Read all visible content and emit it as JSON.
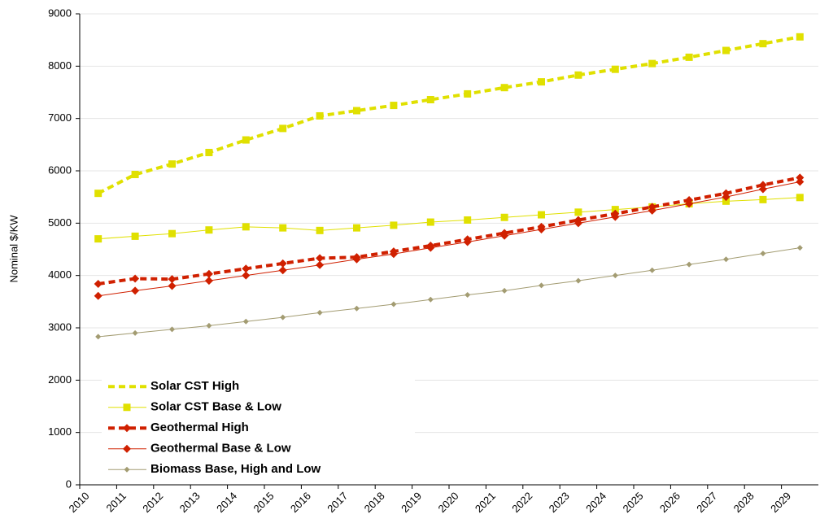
{
  "chart_data": {
    "type": "line",
    "y_label": "Nominal $/KW",
    "x": [
      2010.5,
      2011.5,
      2012.5,
      2013.5,
      2014.5,
      2015.5,
      2016.5,
      2017.5,
      2018.5,
      2019.5,
      2020.5,
      2021.5,
      2022.5,
      2023.5,
      2024.5,
      2025.5,
      2026.5,
      2027.5,
      2028.5,
      2029.5
    ],
    "xlim": [
      2010,
      2030
    ],
    "xticks": [
      2010,
      2011,
      2012,
      2013,
      2014,
      2015,
      2016,
      2017,
      2018,
      2019,
      2020,
      2021,
      2022,
      2023,
      2024,
      2025,
      2026,
      2027,
      2028,
      2029
    ],
    "ylim": [
      0,
      9000
    ],
    "yticks": [
      0,
      1000,
      2000,
      3000,
      4000,
      5000,
      6000,
      7000,
      8000,
      9000
    ],
    "grid": true,
    "legend": "lower left",
    "series": [
      {
        "name": "Solar CST High",
        "color": "#e0e000",
        "dash": "dashed",
        "width": 4,
        "marker": "square",
        "values": [
          5570,
          5930,
          6130,
          6350,
          6590,
          6810,
          7050,
          7150,
          7250,
          7360,
          7470,
          7590,
          7700,
          7830,
          7940,
          8050,
          8170,
          8300,
          8430,
          8560
        ]
      },
      {
        "name": "Solar CST Base & Low",
        "color": "#e0e000",
        "dash": "solid",
        "width": 1,
        "marker": "square",
        "values": [
          4700,
          4750,
          4800,
          4870,
          4930,
          4910,
          4860,
          4910,
          4960,
          5020,
          5060,
          5110,
          5160,
          5210,
          5260,
          5310,
          5370,
          5420,
          5450,
          5490
        ]
      },
      {
        "name": "Geothermal High",
        "color": "#d02000",
        "dash": "dashed",
        "width": 4,
        "marker": "diamond",
        "values": [
          3840,
          3940,
          3930,
          4030,
          4130,
          4230,
          4330,
          4350,
          4460,
          4570,
          4690,
          4810,
          4930,
          5060,
          5180,
          5310,
          5440,
          5570,
          5730,
          5870
        ]
      },
      {
        "name": "Geothermal Base & Low",
        "color": "#d02000",
        "dash": "solid",
        "width": 1,
        "marker": "diamond",
        "values": [
          3610,
          3710,
          3800,
          3900,
          4000,
          4100,
          4200,
          4310,
          4410,
          4530,
          4640,
          4760,
          4880,
          5000,
          5120,
          5240,
          5370,
          5500,
          5650,
          5790
        ]
      },
      {
        "name": "Biomass Base, High and Low",
        "color": "#a39c72",
        "dash": "solid",
        "width": 1,
        "marker": "small-diamond",
        "values": [
          2830,
          2900,
          2970,
          3040,
          3120,
          3200,
          3290,
          3370,
          3450,
          3540,
          3630,
          3710,
          3810,
          3900,
          4000,
          4100,
          4210,
          4310,
          4420,
          4530
        ]
      }
    ]
  }
}
